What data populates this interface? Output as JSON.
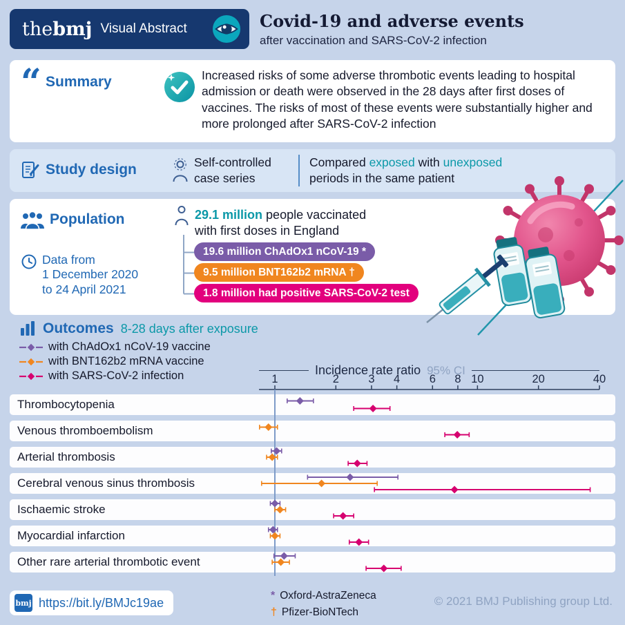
{
  "palette": {
    "bg": "#c6d4ea",
    "navy": "#16386f",
    "blue": "#2068b4",
    "teal": "#0b98a8",
    "card_blue": "#d8e5f5",
    "muted": "#8fa3c2",
    "text": "#15192b"
  },
  "icons": {
    "quote": "“"
  },
  "header": {
    "logo": {
      "the": "the",
      "bmj": "bmj",
      "label": "Visual Abstract"
    },
    "title": "Covid-19 and adverse events",
    "subtitle": "after vaccination and SARS-CoV-2 infection"
  },
  "summary": {
    "heading": "Summary",
    "body": "Increased risks of some adverse thrombotic events leading to hospital admission or death were observed in the 28 days after first doses of vaccines. The risks of most of these events were substantially higher and more prolonged after SARS-CoV-2 infection"
  },
  "study_design": {
    "heading": "Study design",
    "method": {
      "line1": "Self-controlled",
      "line2": "case series"
    },
    "comparison": {
      "part1": "Compared ",
      "exposed": "exposed",
      "part2": " with ",
      "unexposed": "unexposed",
      "part3": "periods in the same patient"
    }
  },
  "population": {
    "heading": "Population",
    "data_range": {
      "line1": "Data from",
      "line2": "1 December 2020",
      "line3": "to 24 April 2021"
    },
    "vaccinated": {
      "highlight": "29.1 million",
      "rest": " people vaccinated",
      "line2": "with first doses in England"
    },
    "pills": [
      {
        "label": "19.6 million ChAdOx1 nCoV-19 *",
        "color": "#7a5ca8"
      },
      {
        "label": "9.5 million BNT162b2 mRNA †",
        "color": "#f0861f"
      },
      {
        "label": "1.8 million had positive SARS-CoV-2 test",
        "color": "#e2007d"
      }
    ]
  },
  "outcomes": {
    "heading": "Outcomes",
    "subheading": "8-28 days after exposure",
    "legend": [
      {
        "label": "with ChAdOx1 nCoV-19 vaccine",
        "color": "#7a5ca8"
      },
      {
        "label": "with BNT162b2 mRNA vaccine",
        "color": "#f0861f"
      },
      {
        "label": "with SARS-CoV-2 infection",
        "color": "#d6006f"
      }
    ]
  },
  "chart_data": {
    "type": "scatter",
    "variant": "forest-plot",
    "title": "Incidence rate ratio",
    "ci_label": "95% CI",
    "x_scale": "log",
    "x_ticks": [
      1,
      2,
      3,
      4,
      6,
      8,
      10,
      20,
      40
    ],
    "xlim": [
      0.82,
      42
    ],
    "reference_line": 1,
    "series_colors": {
      "ChAdOx1": "#7a5ca8",
      "BNT162b2": "#f0861f",
      "SARS-CoV-2": "#d6006f"
    },
    "rows": [
      {
        "label": "Thrombocytopenia",
        "points": [
          {
            "series": "ChAdOx1",
            "irr": 1.33,
            "lo": 1.15,
            "hi": 1.55
          },
          {
            "series": "SARS-CoV-2",
            "irr": 3.05,
            "lo": 2.45,
            "hi": 3.7
          }
        ]
      },
      {
        "label": "Venous thromboembolism",
        "points": [
          {
            "series": "BNT162b2",
            "irr": 0.93,
            "lo": 0.84,
            "hi": 1.03
          },
          {
            "series": "SARS-CoV-2",
            "irr": 7.95,
            "lo": 6.9,
            "hi": 9.1
          }
        ]
      },
      {
        "label": "Arterial thrombosis",
        "points": [
          {
            "series": "ChAdOx1",
            "irr": 1.02,
            "lo": 0.96,
            "hi": 1.08
          },
          {
            "series": "BNT162b2",
            "irr": 0.97,
            "lo": 0.91,
            "hi": 1.03
          },
          {
            "series": "SARS-CoV-2",
            "irr": 2.55,
            "lo": 2.3,
            "hi": 2.85
          }
        ]
      },
      {
        "label": "Cerebral venous sinus thrombosis",
        "points": [
          {
            "series": "ChAdOx1",
            "irr": 2.35,
            "lo": 1.45,
            "hi": 4.05
          },
          {
            "series": "BNT162b2",
            "irr": 1.7,
            "lo": 0.86,
            "hi": 3.2
          },
          {
            "series": "SARS-CoV-2",
            "irr": 7.7,
            "lo": 3.1,
            "hi": 36.0
          }
        ]
      },
      {
        "label": "Ischaemic stroke",
        "points": [
          {
            "series": "ChAdOx1",
            "irr": 1.0,
            "lo": 0.95,
            "hi": 1.06
          },
          {
            "series": "BNT162b2",
            "irr": 1.06,
            "lo": 1.0,
            "hi": 1.13
          },
          {
            "series": "SARS-CoV-2",
            "irr": 2.17,
            "lo": 1.95,
            "hi": 2.45
          }
        ]
      },
      {
        "label": "Myocardial infarction",
        "points": [
          {
            "series": "ChAdOx1",
            "irr": 0.98,
            "lo": 0.93,
            "hi": 1.03
          },
          {
            "series": "BNT162b2",
            "irr": 1.0,
            "lo": 0.95,
            "hi": 1.06
          },
          {
            "series": "SARS-CoV-2",
            "irr": 2.6,
            "lo": 2.33,
            "hi": 2.9
          }
        ]
      },
      {
        "label": "Other rare arterial thrombotic event",
        "points": [
          {
            "series": "ChAdOx1",
            "irr": 1.11,
            "lo": 0.99,
            "hi": 1.26
          },
          {
            "series": "BNT162b2",
            "irr": 1.07,
            "lo": 0.97,
            "hi": 1.18
          },
          {
            "series": "SARS-CoV-2",
            "irr": 3.45,
            "lo": 2.82,
            "hi": 4.2
          }
        ]
      }
    ]
  },
  "footer": {
    "logo": "bmj",
    "link": "https://bit.ly/BMJc19ae",
    "footnotes": [
      {
        "symbol": "*",
        "label": "Oxford-AstraZeneca",
        "color": "#7a5ca8"
      },
      {
        "symbol": "†",
        "label": "Pfizer-BioNTech",
        "color": "#f0861f"
      }
    ],
    "copyright": "© 2021 BMJ Publishing group Ltd."
  }
}
